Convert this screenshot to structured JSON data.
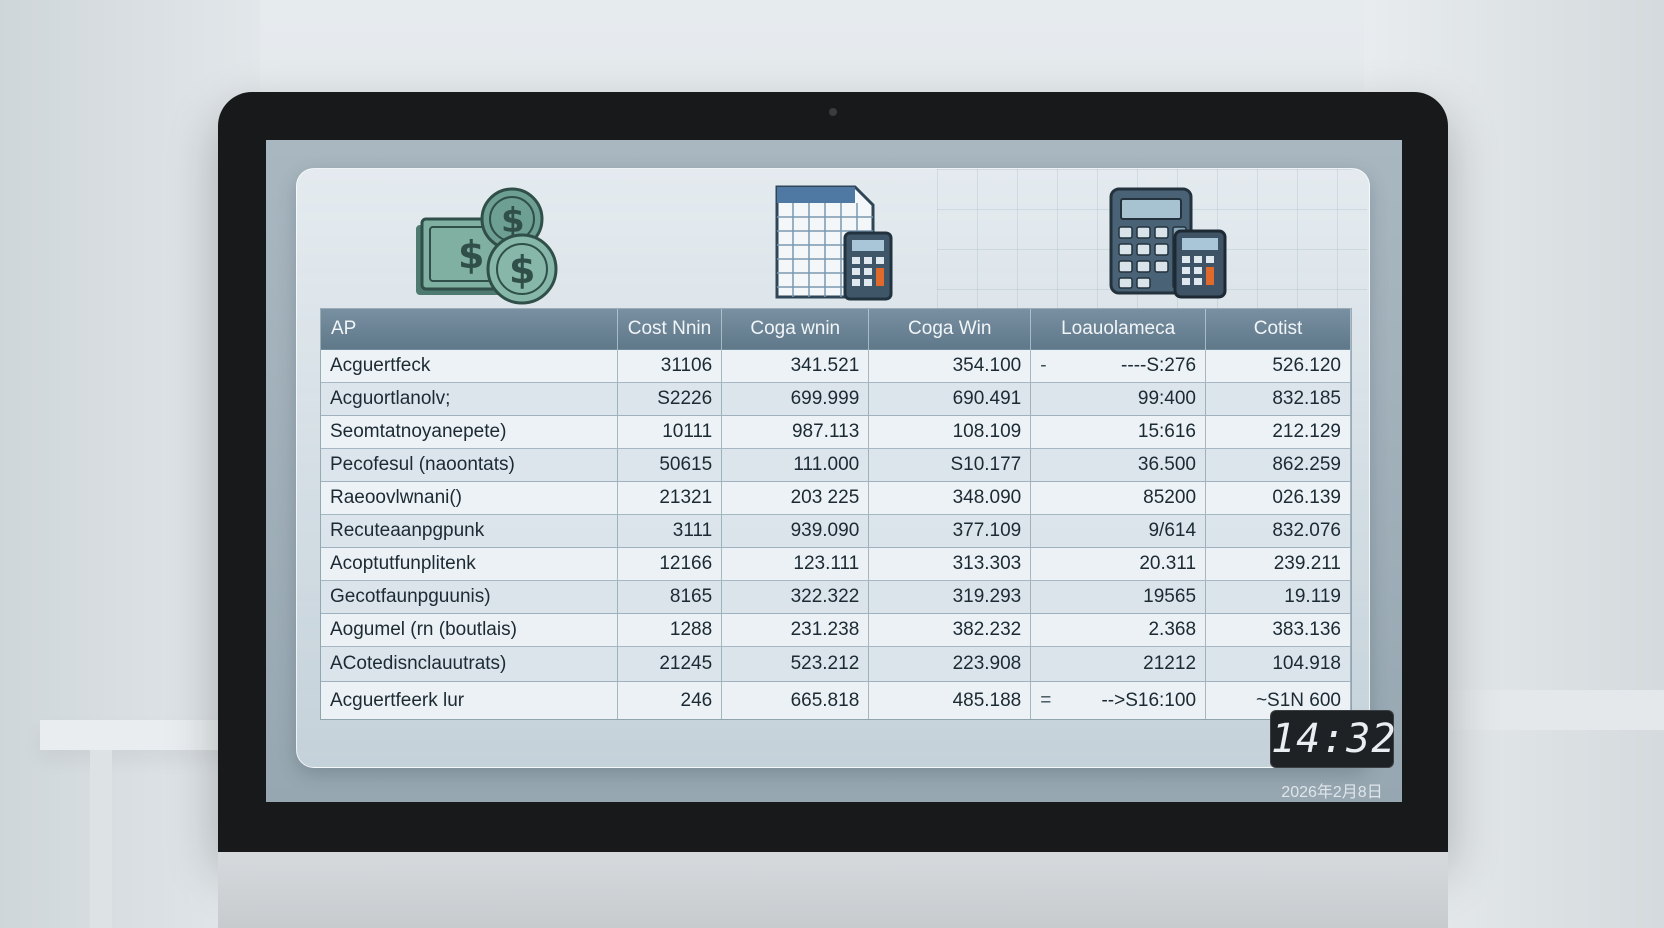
{
  "table": {
    "headers": [
      "AP",
      "Cost Nnin",
      "Coga wnin",
      "Coga Win",
      "Loauolameca",
      "Cotist"
    ],
    "rows": [
      [
        "Acguertfeck",
        "31106",
        "341.521",
        "354.100",
        "----S:276",
        "526.120"
      ],
      [
        "Acguortlanolv;",
        "S2226",
        "699.999",
        "690.491",
        "99:400",
        "832.185"
      ],
      [
        "Seomtatnoyanepete)",
        "10111",
        "987.113",
        "108.109",
        "15:616",
        "212.129"
      ],
      [
        "Pecofesul (naoontats)",
        "50615",
        "111.000",
        "S10.177",
        "36.500",
        "862.259"
      ],
      [
        "Raeoovlwnani()",
        "21321",
        "203 225",
        "348.090",
        "85200",
        "026.139"
      ],
      [
        "Recuteaanpgpunk",
        "3111",
        "939.090",
        "377.109",
        "9/614",
        "832.076"
      ],
      [
        "Acoptutfunplitenk",
        "12166",
        "123.111",
        "313.303",
        "20.311",
        "239.211"
      ],
      [
        "Gecotfaunpguunis)",
        "8165",
        "322.322",
        "319.293",
        "19565",
        "19.119"
      ],
      [
        "Aogumel (rn (boutlais)",
        "1288",
        "231.238",
        "382.232",
        "2.368",
        "383.136"
      ],
      [
        "ACotedisnclauutrats)",
        "21245",
        "523.212",
        "223.908",
        "21212",
        "104.918"
      ],
      [
        "Acguertfeerk lur",
        "246",
        "665.818",
        "485.188",
        "-->S16:100",
        "~S1N 600"
      ]
    ],
    "row_dashes": [
      "-",
      "",
      "",
      "",
      "",
      "",
      "",
      "",
      "",
      "",
      "="
    ]
  },
  "clock": {
    "time": "14:32",
    "date": "2026年2月8日"
  },
  "icons": {
    "money": "money-coins-icon",
    "spreadsheet": "spreadsheet-calculator-icon",
    "calculator": "calculator-icon"
  },
  "colors": {
    "header": "#6a8294",
    "money_green": "#5e8c80",
    "orange_key": "#e06a2c"
  }
}
